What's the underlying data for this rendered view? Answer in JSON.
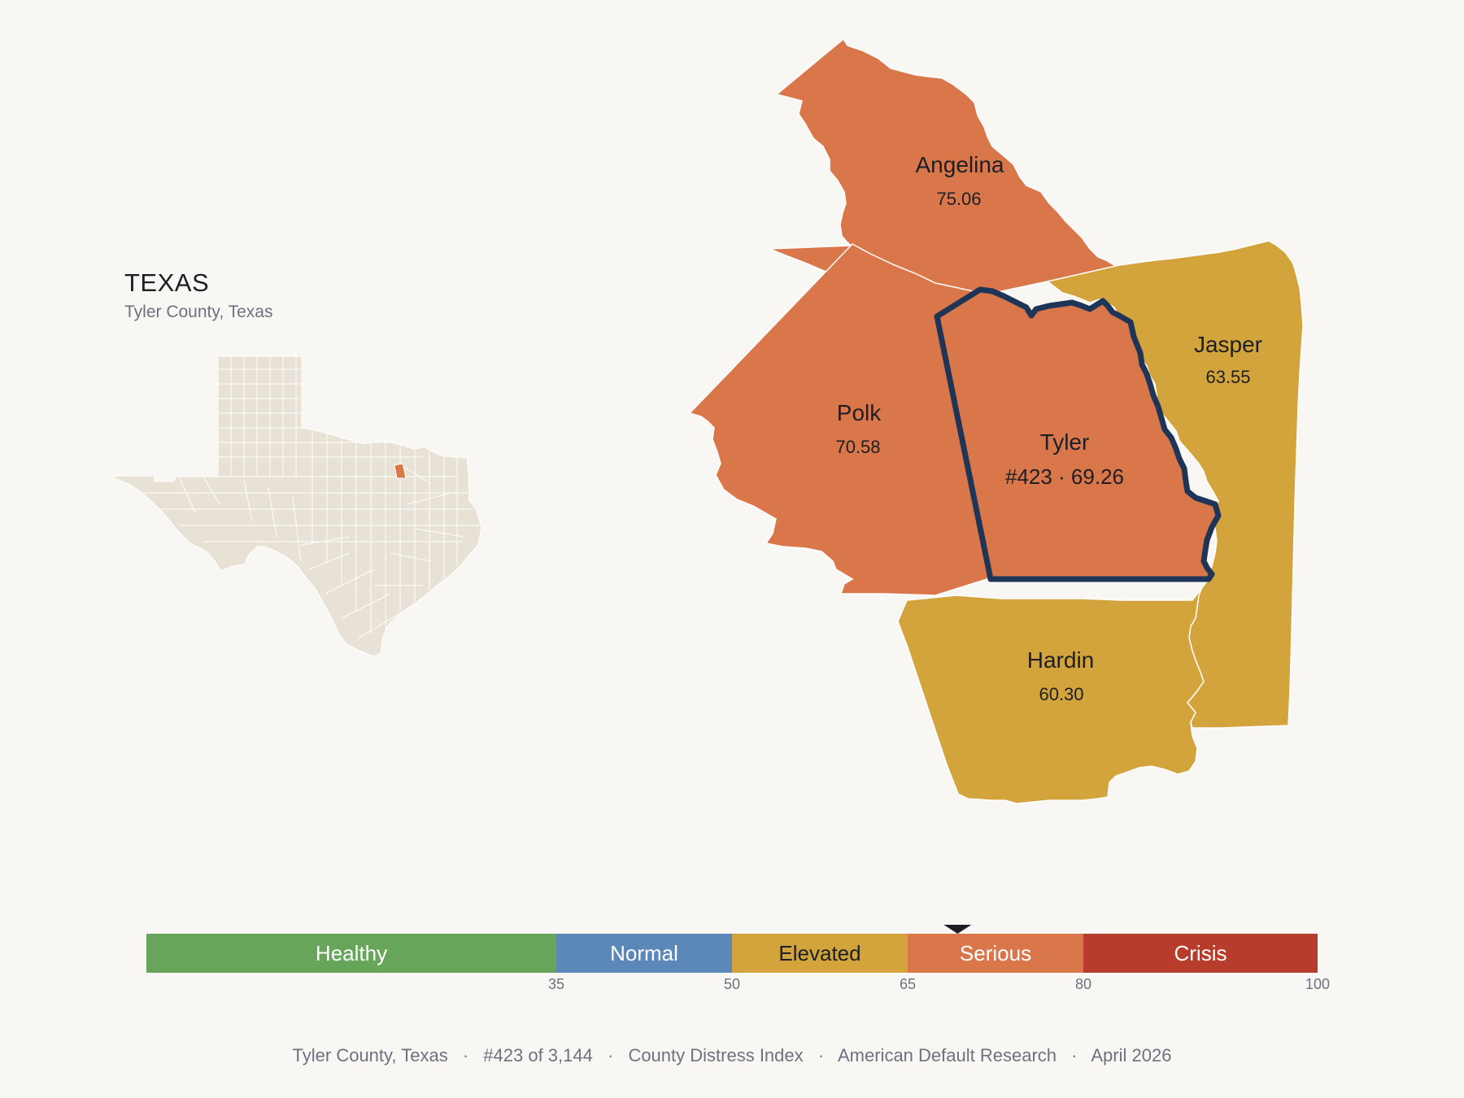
{
  "state": {
    "title": "TEXAS",
    "subtitle": "Tyler County, Texas"
  },
  "colors": {
    "background": "#f9f7f3",
    "state_fill": "#e8e2d6",
    "highlight": "#d9774b",
    "serious": "#d9774b",
    "elevated": "#d3a43b",
    "focus_outline": "#1f3557"
  },
  "focus": {
    "name": "Tyler",
    "label": "#423 · 69.26",
    "score": 69.26
  },
  "counties": [
    {
      "name": "Angelina",
      "score_label": "75.06",
      "score": 75.06,
      "category": "Serious"
    },
    {
      "name": "Polk",
      "score_label": "70.58",
      "score": 70.58,
      "category": "Serious"
    },
    {
      "name": "Jasper",
      "score_label": "63.55",
      "score": 63.55,
      "category": "Elevated"
    },
    {
      "name": "Hardin",
      "score_label": "60.30",
      "score": 60.3,
      "category": "Elevated"
    }
  ],
  "legend": {
    "segments": [
      {
        "label": "Healthy",
        "color": "#67a65a",
        "text_color": "#ffffff",
        "from": 0,
        "to": 35
      },
      {
        "label": "Normal",
        "color": "#5b88b8",
        "text_color": "#ffffff",
        "from": 35,
        "to": 50
      },
      {
        "label": "Elevated",
        "color": "#d3a43b",
        "text_color": "#1c1f24",
        "from": 50,
        "to": 65
      },
      {
        "label": "Serious",
        "color": "#d9774b",
        "text_color": "#ffffff",
        "from": 65,
        "to": 80
      },
      {
        "label": "Crisis",
        "color": "#b83c2b",
        "text_color": "#ffffff",
        "from": 80,
        "to": 100
      }
    ],
    "ticks": [
      "35",
      "50",
      "65",
      "80",
      "100"
    ],
    "marker_value": 69.26
  },
  "footer": {
    "county": "Tyler County, Texas",
    "rank": "#423 of 3,144",
    "index": "County Distress Index",
    "source": "American Default Research",
    "date": "April 2026",
    "separator": "·"
  }
}
